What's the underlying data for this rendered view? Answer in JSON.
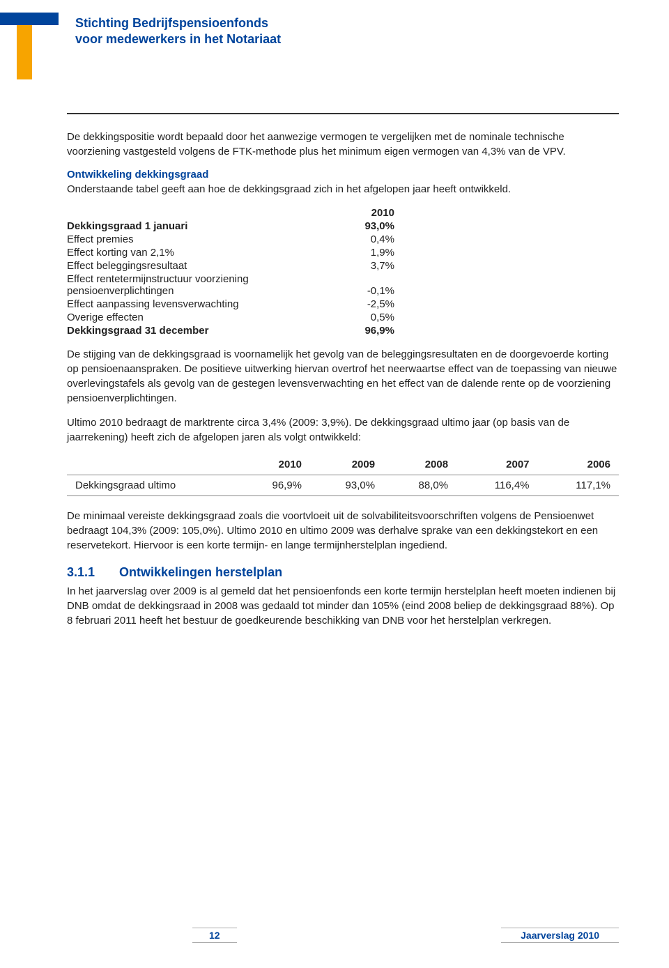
{
  "logo": {
    "line1": "Stichting Bedrijfspensioenfonds",
    "line2": "voor medewerkers in het Notariaat"
  },
  "intro": "De dekkingspositie wordt bepaald door het aanwezige vermogen te vergelijken met de nominale technische voorziening vastgesteld volgens de FTK-methode plus het minimum eigen vermogen van 4,3% van de VPV.",
  "dev": {
    "heading": "Ontwikkeling dekkingsgraad",
    "text": "Onderstaande tabel geeft aan hoe de dekkingsgraad zich in het afgelopen jaar heeft ontwikkeld."
  },
  "kv": {
    "year_header": "2010",
    "rows": [
      {
        "label": "Dekkingsgraad 1 januari",
        "value": "93,0%",
        "bold": true
      },
      {
        "label": "Effect premies",
        "value": "0,4%"
      },
      {
        "label": "Effect korting van 2,1%",
        "value": "1,9%"
      },
      {
        "label": "Effect beleggingsresultaat",
        "value": "3,7%"
      },
      {
        "label": "Effect rentetermijnstructuur voorziening pensioenverplichtingen",
        "value": "-0,1%",
        "wrap": true
      },
      {
        "label": "Effect aanpassing levensverwachting",
        "value": "-2,5%"
      },
      {
        "label": "Overige effecten",
        "value": "0,5%"
      },
      {
        "label": "Dekkingsgraad 31 december",
        "value": "96,9%",
        "bold": true
      }
    ]
  },
  "para1": "De stijging van de dekkingsgraad is voornamelijk het gevolg van de beleggingsresultaten en de doorgevoerde korting op pensioenaanspraken. De positieve uitwerking hiervan overtrof het neerwaartse effect van de toepassing van nieuwe overlevingstafels als gevolg van de gestegen levensverwachting en het effect van de dalende rente op de voorziening pensioenverplichtingen.",
  "para2": "Ultimo 2010 bedraagt de marktrente circa 3,4% (2009: 3,9%). De dekkingsgraad ultimo jaar (op basis van de jaarrekening) heeft zich de afgelopen jaren als volgt ontwikkeld:",
  "yeartable": {
    "headers": [
      "",
      "2010",
      "2009",
      "2008",
      "2007",
      "2006"
    ],
    "row_label": "Dekkingsgraad ultimo",
    "row": [
      "96,9%",
      "93,0%",
      "88,0%",
      "116,4%",
      "117,1%"
    ]
  },
  "para3": "De minimaal vereiste dekkingsgraad zoals die voortvloeit uit de solvabiliteitsvoorschriften volgens de Pensioenwet bedraagt 104,3% (2009: 105,0%). Ultimo 2010 en ultimo 2009 was derhalve sprake van een dekkingstekort en een reservetekort. Hiervoor is een korte termijn- en lange termijnherstelplan ingediend.",
  "subsection": {
    "num": "3.1.1",
    "title": "Ontwikkelingen herstelplan",
    "text": "In het jaarverslag over 2009 is al gemeld dat het pensioenfonds een korte termijn herstelplan heeft moeten indienen bij DNB omdat de dekkingsraad in 2008 was gedaald tot minder dan 105% (eind 2008 beliep de dekkingsgraad 88%). Op 8 februari 2011 heeft het bestuur de goedkeurende beschikking van DNB voor het herstelplan verkregen."
  },
  "footer": {
    "page": "12",
    "label": "Jaarverslag 2010"
  }
}
